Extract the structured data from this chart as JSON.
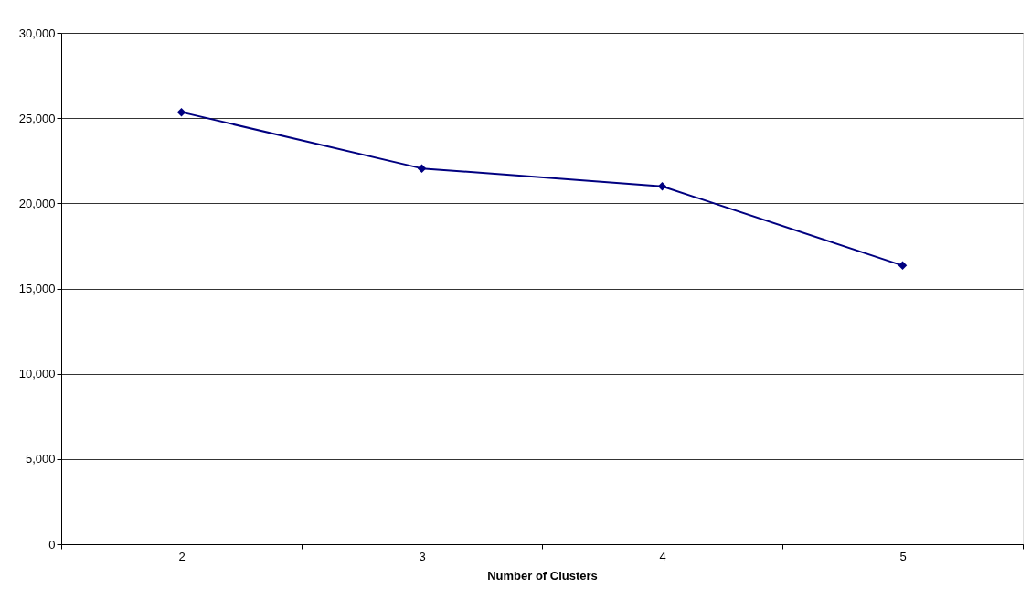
{
  "chart_data": {
    "type": "line",
    "xlabel": "Number of Clusters",
    "categories": [
      "2",
      "3",
      "4",
      "5"
    ],
    "series": [
      {
        "color": "#000080",
        "values": [
          25350,
          22050,
          21000,
          16350
        ]
      }
    ],
    "ylim": [
      0,
      30000
    ],
    "yticks": [
      0,
      {
        "value": 5000,
        "label": "5,000"
      },
      {
        "value": 10000,
        "label": "10,000"
      },
      {
        "value": 15000,
        "label": "15,000"
      },
      {
        "value": 20000,
        "label": "20,000"
      },
      {
        "value": 25000,
        "label": "25,000"
      },
      {
        "value": 30000,
        "label": "30,000"
      }
    ],
    "grid": "y",
    "marker": "diamond",
    "line_style": "solid"
  }
}
